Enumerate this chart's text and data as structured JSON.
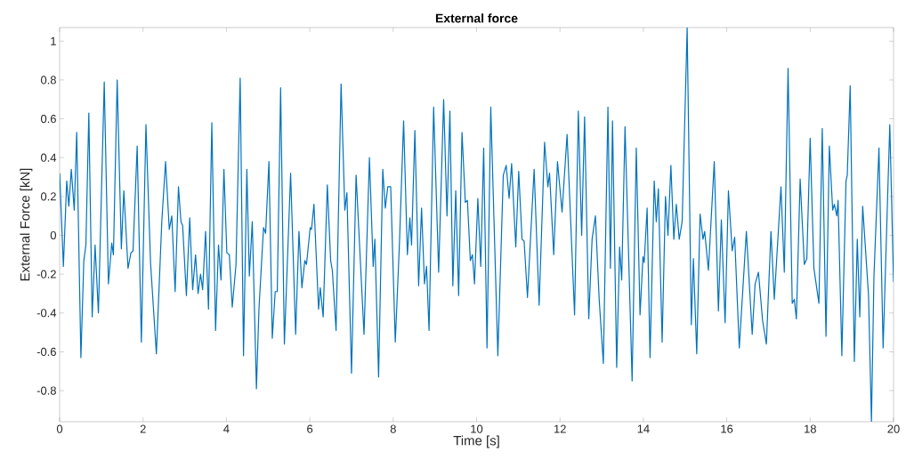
{
  "chart_data": {
    "type": "line",
    "title": "External force",
    "xlabel": "Time [s]",
    "ylabel": "External Force [kN]",
    "x": [
      0,
      0.09,
      0.17,
      0.22,
      0.28,
      0.35,
      0.41,
      0.51,
      0.58,
      0.63,
      0.7,
      0.78,
      0.85,
      0.93,
      1.07,
      1.17,
      1.25,
      1.29,
      1.38,
      1.48,
      1.54,
      1.64,
      1.71,
      1.76,
      1.86,
      1.96,
      2.07,
      2.18,
      2.32,
      2.45,
      2.54,
      2.63,
      2.69,
      2.77,
      2.85,
      2.91,
      2.95,
      3.04,
      3.12,
      3.19,
      3.26,
      3.32,
      3.38,
      3.43,
      3.5,
      3.57,
      3.65,
      3.74,
      3.81,
      3.87,
      3.94,
      4.01,
      4.07,
      4.14,
      4.23,
      4.33,
      4.41,
      4.49,
      4.55,
      4.62,
      4.72,
      4.78,
      4.89,
      4.94,
      5.02,
      5.1,
      5.17,
      5.22,
      5.3,
      5.39,
      5.54,
      5.66,
      5.74,
      5.81,
      5.88,
      5.92,
      6.01,
      6.04,
      6.1,
      6.21,
      6.25,
      6.32,
      6.42,
      6.5,
      6.54,
      6.63,
      6.75,
      6.84,
      6.89,
      7.0,
      7.11,
      7.3,
      7.43,
      7.52,
      7.56,
      7.65,
      7.75,
      7.81,
      7.87,
      7.94,
      8.05,
      8.15,
      8.25,
      8.34,
      8.4,
      8.44,
      8.52,
      8.61,
      8.68,
      8.75,
      8.8,
      8.86,
      8.97,
      9.09,
      9.21,
      9.29,
      9.36,
      9.43,
      9.5,
      9.57,
      9.65,
      9.73,
      9.78,
      9.85,
      9.9,
      9.95,
      10.03,
      10.1,
      10.17,
      10.25,
      10.34,
      10.51,
      10.64,
      10.71,
      10.78,
      10.84,
      10.94,
      11.01,
      11.09,
      11.14,
      11.22,
      11.38,
      11.5,
      11.63,
      11.71,
      11.75,
      11.85,
      11.94,
      12.05,
      12.17,
      12.35,
      12.44,
      12.52,
      12.59,
      12.69,
      12.77,
      12.85,
      12.94,
      13.04,
      13.15,
      13.21,
      13.26,
      13.36,
      13.43,
      13.48,
      13.56,
      13.73,
      13.83,
      13.92,
      13.99,
      14.02,
      14.09,
      14.16,
      14.26,
      14.31,
      14.36,
      14.45,
      14.53,
      14.59,
      14.66,
      14.73,
      14.79,
      14.86,
      14.93,
      15.05,
      15.15,
      15.2,
      15.28,
      15.36,
      15.43,
      15.47,
      15.56,
      15.7,
      15.8,
      15.87,
      15.96,
      16.04,
      16.13,
      16.19,
      16.3,
      16.47,
      16.61,
      16.68,
      16.76,
      16.86,
      16.95,
      17.06,
      17.14,
      17.3,
      17.38,
      17.47,
      17.57,
      17.62,
      17.67,
      17.76,
      17.86,
      17.92,
      18.0,
      18.09,
      18.21,
      18.29,
      18.38,
      18.46,
      18.54,
      18.58,
      18.64,
      18.67,
      18.76,
      18.86,
      18.89,
      18.96,
      19.06,
      19.13,
      19.19,
      19.26,
      19.4,
      19.47,
      19.53,
      19.65,
      19.75,
      19.91,
      20.0
    ],
    "series": [
      {
        "color": "#0072bd",
        "values": [
          0.32,
          -0.16,
          0.28,
          0.15,
          0.34,
          0.13,
          0.53,
          -0.63,
          -0.13,
          -0.05,
          0.63,
          -0.42,
          -0.05,
          -0.4,
          0.79,
          -0.25,
          -0.04,
          -0.1,
          0.8,
          -0.07,
          0.23,
          -0.17,
          -0.09,
          -0.08,
          0.46,
          -0.55,
          0.57,
          -0.14,
          -0.61,
          0.07,
          0.38,
          0.03,
          0.1,
          -0.29,
          0.25,
          0.07,
          0.05,
          -0.31,
          0.09,
          -0.28,
          -0.1,
          -0.3,
          -0.2,
          -0.28,
          0.02,
          -0.38,
          0.58,
          -0.49,
          -0.05,
          -0.23,
          0.34,
          -0.09,
          -0.1,
          -0.37,
          -0.15,
          0.81,
          -0.62,
          0.34,
          -0.21,
          0.07,
          -0.79,
          -0.38,
          0.04,
          0.01,
          0.38,
          -0.53,
          -0.29,
          -0.29,
          0.76,
          -0.56,
          0.32,
          -0.51,
          0.02,
          -0.27,
          -0.13,
          -0.15,
          0.04,
          0.03,
          0.16,
          -0.38,
          -0.27,
          -0.42,
          0.26,
          -0.13,
          -0.18,
          -0.49,
          0.78,
          0.13,
          0.22,
          -0.71,
          0.31,
          -0.51,
          0.4,
          -0.16,
          -0.02,
          -0.73,
          0.34,
          0.14,
          0.25,
          0.25,
          -0.55,
          -0.04,
          0.59,
          -0.1,
          0.09,
          -0.05,
          0.54,
          -0.26,
          0.14,
          -0.25,
          -0.16,
          -0.49,
          0.66,
          -0.19,
          0.7,
          0.1,
          0.64,
          -0.26,
          0.23,
          -0.31,
          0.53,
          0.17,
          0.18,
          -0.13,
          -0.1,
          -0.25,
          0.19,
          -0.16,
          0.45,
          -0.58,
          0.66,
          -0.62,
          0.31,
          0.36,
          0.19,
          0.37,
          -0.06,
          0.33,
          -0.02,
          -0.03,
          -0.32,
          0.34,
          -0.36,
          0.48,
          0.25,
          0.32,
          -0.1,
          0.38,
          0.12,
          0.52,
          -0.41,
          0.64,
          0.0,
          0.61,
          -0.43,
          -0.02,
          0.1,
          -0.33,
          -0.66,
          0.66,
          -0.17,
          0.59,
          -0.68,
          -0.06,
          -0.23,
          0.56,
          -0.75,
          0.45,
          -0.41,
          -0.11,
          -0.14,
          0.14,
          -0.63,
          0.28,
          0.07,
          0.24,
          -0.55,
          0.2,
          0.0,
          0.36,
          -0.02,
          0.16,
          -0.02,
          0.07,
          1.07,
          -0.46,
          -0.12,
          -0.61,
          0.11,
          -0.02,
          0.02,
          -0.18,
          0.38,
          -0.39,
          0.08,
          -0.45,
          0.23,
          -0.08,
          -0.01,
          -0.58,
          0.02,
          -0.51,
          -0.25,
          -0.19,
          -0.44,
          -0.56,
          0.02,
          -0.33,
          0.25,
          -0.19,
          0.86,
          -0.35,
          -0.33,
          -0.43,
          0.29,
          -0.15,
          -0.12,
          0.5,
          -0.17,
          -0.35,
          0.55,
          -0.52,
          0.46,
          0.13,
          0.16,
          0.1,
          0.18,
          -0.62,
          0.28,
          0.31,
          0.77,
          -0.65,
          -0.02,
          -0.42,
          0.15,
          -0.31,
          -0.96,
          -0.21,
          0.45,
          -0.58,
          0.57,
          -0.24
        ]
      }
    ],
    "xlim": [
      0,
      20
    ],
    "ylim": [
      -0.96,
      1.07
    ],
    "xticks": [
      0,
      2,
      4,
      6,
      8,
      10,
      12,
      14,
      16,
      18,
      20
    ],
    "yticks": [
      -0.8,
      -0.6,
      -0.4,
      -0.2,
      0,
      0.2,
      0.4,
      0.6,
      0.8,
      1
    ]
  }
}
